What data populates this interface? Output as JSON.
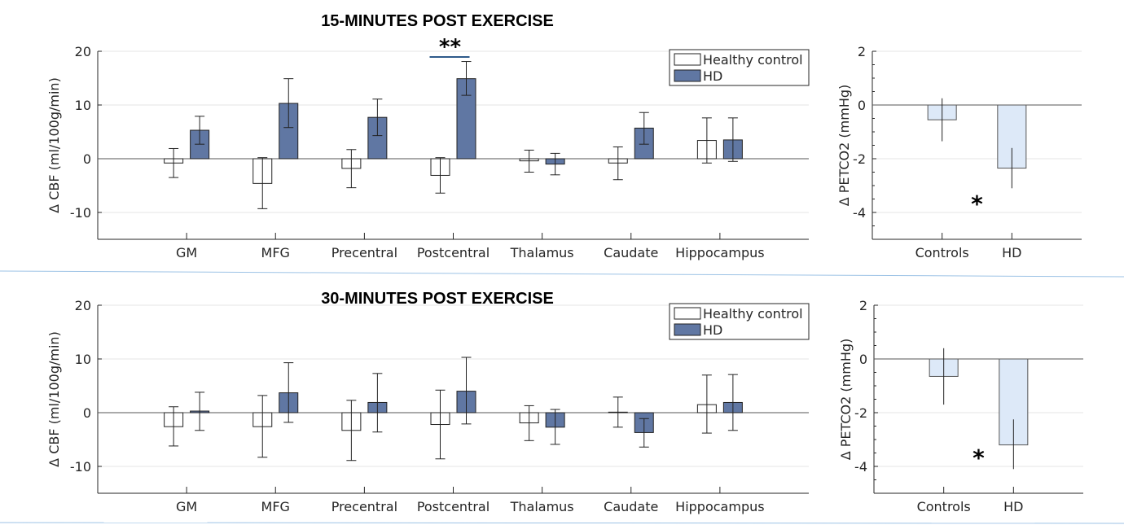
{
  "chart_data": [
    {
      "type": "bar",
      "title": "15-MINUTES POST EXERCISE",
      "ylabel": "Δ CBF (ml/100g/min)",
      "ylim": [
        -15,
        20
      ],
      "yticks": [
        -10,
        0,
        10,
        20
      ],
      "grid": true,
      "legend_placement": "top-right",
      "categories": [
        "GM",
        "MFG",
        "Precentral",
        "Postcentral",
        "Thalamus",
        "Caudate",
        "Hippocampus"
      ],
      "series": [
        {
          "name": "Healthy control",
          "color": "#ffffff",
          "values": [
            -0.8,
            -4.6,
            -1.8,
            -3.1,
            -0.4,
            -0.8,
            3.4
          ],
          "err_low": [
            -3.5,
            -9.3,
            -5.4,
            -6.4,
            -2.5,
            -3.9,
            -0.8
          ],
          "err_high": [
            1.9,
            0.2,
            1.7,
            0.2,
            1.6,
            2.2,
            7.6
          ]
        },
        {
          "name": "HD",
          "color": "#6077a3",
          "values": [
            5.3,
            10.3,
            7.7,
            14.9,
            -1.0,
            5.7,
            3.5
          ],
          "err_low": [
            2.7,
            5.8,
            4.3,
            11.8,
            -3.0,
            2.7,
            -0.5
          ],
          "err_high": [
            7.9,
            14.9,
            11.1,
            18.1,
            1.0,
            8.6,
            7.6
          ]
        }
      ],
      "annotations": [
        {
          "text": "**",
          "category": "Postcentral"
        }
      ]
    },
    {
      "type": "bar",
      "ylabel": "Δ PETCO2 (mmHg)",
      "ylim": [
        -5,
        2
      ],
      "yticks": [
        -4,
        -2,
        0,
        2
      ],
      "grid": true,
      "categories": [
        "Controls",
        "HD"
      ],
      "series": [
        {
          "color": "#dde9f8",
          "values": [
            -0.55,
            -2.35
          ],
          "err_low": [
            -1.35,
            -3.1
          ],
          "err_high": [
            0.25,
            -1.6
          ]
        }
      ],
      "annotations": [
        {
          "text": "*"
        }
      ]
    },
    {
      "type": "bar",
      "title": "30-MINUTES POST EXERCISE",
      "ylabel": "Δ CBF (ml/100g/min)",
      "ylim": [
        -15,
        20
      ],
      "yticks": [
        -10,
        0,
        10,
        20
      ],
      "grid": true,
      "legend_placement": "top-right",
      "categories": [
        "GM",
        "MFG",
        "Precentral",
        "Postcentral",
        "Thalamus",
        "Caudate",
        "Hippocampus"
      ],
      "series": [
        {
          "name": "Healthy control",
          "color": "#ffffff",
          "values": [
            -2.6,
            -2.6,
            -3.3,
            -2.2,
            -1.9,
            0.1,
            1.5
          ],
          "err_low": [
            -6.2,
            -8.3,
            -8.9,
            -8.6,
            -5.2,
            -2.7,
            -3.8
          ],
          "err_high": [
            1.1,
            3.2,
            2.3,
            4.2,
            1.3,
            2.9,
            7.0
          ]
        },
        {
          "name": "HD",
          "color": "#6077a3",
          "values": [
            0.3,
            3.7,
            1.9,
            4.0,
            -2.7,
            -3.7,
            1.9
          ],
          "err_low": [
            -3.3,
            -1.8,
            -3.6,
            -2.1,
            -5.9,
            -6.4,
            -3.3
          ],
          "err_high": [
            3.8,
            9.3,
            7.3,
            10.3,
            0.6,
            -1.1,
            7.1
          ]
        }
      ]
    },
    {
      "type": "bar",
      "ylabel": "Δ PETCO2 (mmHg)",
      "ylim": [
        -5,
        2
      ],
      "yticks": [
        -4,
        -2,
        0,
        2
      ],
      "grid": true,
      "categories": [
        "Controls",
        "HD"
      ],
      "series": [
        {
          "color": "#dde9f8",
          "values": [
            -0.65,
            -3.2
          ],
          "err_low": [
            -1.7,
            -4.1
          ],
          "err_high": [
            0.4,
            -2.25
          ]
        }
      ],
      "annotations": [
        {
          "text": "*"
        }
      ]
    }
  ],
  "separator_color": "#5b9bd5"
}
